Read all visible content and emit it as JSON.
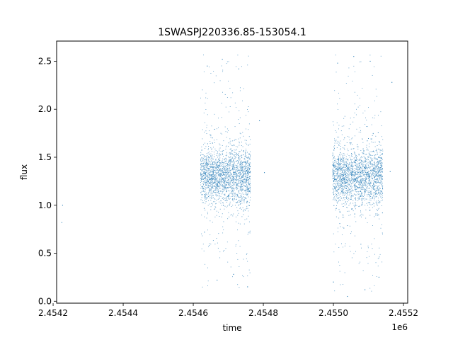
{
  "colors": {
    "series": "#1f77b4",
    "axes": "#000000",
    "background": "#ffffff"
  },
  "chart_data": {
    "type": "scatter",
    "title": "1SWASPJ220336.85-153054.1",
    "xlabel": "time",
    "ylabel": "flux",
    "x_offset_label": "1e6",
    "xlim": [
      2454210,
      2455212
    ],
    "ylim": [
      -0.02,
      2.71
    ],
    "grid": false,
    "legend": "none",
    "x_ticks": [
      {
        "value": 2454200,
        "label": "2.4542"
      },
      {
        "value": 2454400,
        "label": "2.4544"
      },
      {
        "value": 2454600,
        "label": "2.4546"
      },
      {
        "value": 2454800,
        "label": "2.4548"
      },
      {
        "value": 2455000,
        "label": "2.4550"
      },
      {
        "value": 2455200,
        "label": "2.4552"
      }
    ],
    "y_ticks": [
      {
        "value": 0.0,
        "label": "0.0"
      },
      {
        "value": 0.5,
        "label": "0.5"
      },
      {
        "value": 1.0,
        "label": "1.0"
      },
      {
        "value": 1.5,
        "label": "1.5"
      },
      {
        "value": 2.0,
        "label": "2.0"
      },
      {
        "value": 2.5,
        "label": "2.5"
      }
    ],
    "series": [
      {
        "x": [
          2454225,
          2454227,
          2454789,
          2454803,
          2455162,
          2455167,
          2454625,
          2454632,
          2454640,
          2454655,
          2454668,
          2454683,
          2454700,
          2454715,
          2454730,
          2454742,
          2454755,
          2454762,
          2455000,
          2455012,
          2455025,
          2455040,
          2455058,
          2455075,
          2455090,
          2455105,
          2455118,
          2455130,
          2455140
        ],
        "y": [
          0.82,
          1.0,
          1.88,
          1.34,
          1.35,
          2.28,
          1.28,
          0.72,
          2.45,
          1.35,
          0.22,
          2.52,
          1.1,
          0.28,
          2.42,
          1.45,
          0.15,
          1.3,
          0.2,
          2.48,
          1.38,
          0.05,
          2.55,
          1.2,
          0.12,
          2.5,
          1.42,
          0.25,
          1.3
        ]
      }
    ],
    "clusters": [
      {
        "x_range": [
          2454621,
          2454764
        ],
        "y_median": 1.3,
        "y_range": [
          0.14,
          2.6
        ],
        "count": 2200
      },
      {
        "x_range": [
          2454998,
          2455142
        ],
        "y_median": 1.3,
        "y_range": [
          0.1,
          2.6
        ],
        "count": 2200
      }
    ]
  }
}
